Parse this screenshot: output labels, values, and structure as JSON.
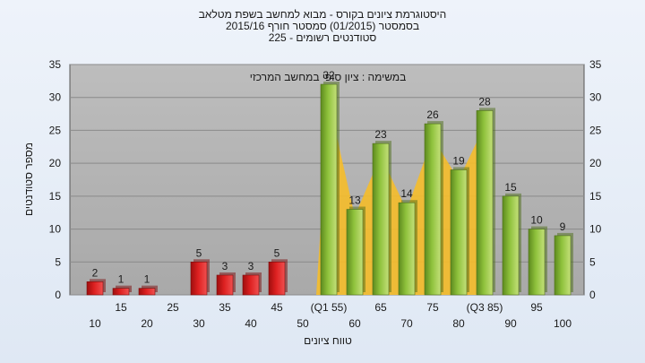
{
  "colors": {
    "plot_bg": "#a9a9a9",
    "grid": "#8a8a8a",
    "red_bar": "#dd2020",
    "green_bar": "#8fc23c",
    "area": "#f5bc2a"
  },
  "chart_data": {
    "type": "bar",
    "title_lines": [
      "היסטוגרמת ציונים בקורס - מבוא למחשב בשפת מטלאב",
      "בסמסטר  (01/2015)  סמסטר חורף 2015/16",
      "סטודנטים רשומים - 225"
    ],
    "annotation": "במשימה : ציון סופי במחשב המרכזי",
    "xlabel": "טווח ציונים",
    "ylabel": "מספר סטודנטים",
    "ylim": [
      0,
      35
    ],
    "yticks": [
      0,
      5,
      10,
      15,
      20,
      25,
      30,
      35
    ],
    "grid": true,
    "categories": [
      "10",
      "15",
      "20",
      "25",
      "30",
      "35",
      "40",
      "45",
      "50",
      "(Q1 55)",
      "60",
      "65",
      "70",
      "75",
      "80",
      "(Q3 85)",
      "90",
      "95",
      "100"
    ],
    "values": [
      2,
      1,
      1,
      0,
      5,
      3,
      3,
      5,
      0,
      32,
      13,
      23,
      14,
      26,
      19,
      28,
      15,
      10,
      9
    ],
    "value_labels": [
      "2",
      "1",
      "1",
      "",
      "5",
      "3",
      "3",
      "5",
      "",
      "32",
      "13",
      "23",
      "14",
      "26",
      "19",
      "28",
      "15",
      "10",
      "9"
    ],
    "bar_colors": [
      "red",
      "red",
      "red",
      "red",
      "red",
      "red",
      "red",
      "red",
      "red",
      "green",
      "green",
      "green",
      "green",
      "green",
      "green",
      "green",
      "green",
      "green",
      "green"
    ],
    "area_range": [
      "(Q1 55)",
      "(Q3 85)"
    ]
  }
}
